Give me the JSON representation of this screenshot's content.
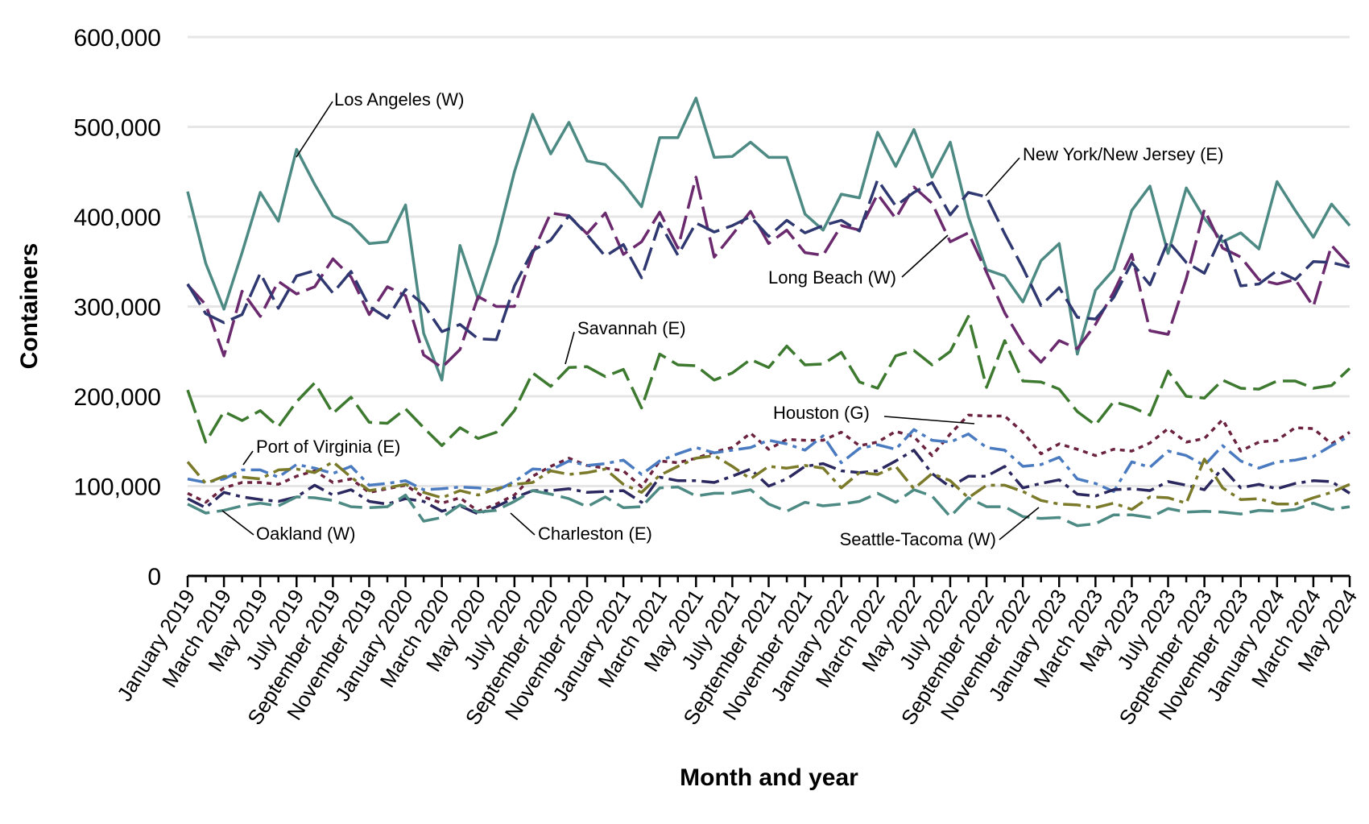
{
  "chart_data": {
    "type": "line",
    "xlabel": "Month and year",
    "ylabel": "Containers",
    "ylim": [
      0,
      600000
    ],
    "yticks": [
      0,
      100000,
      200000,
      300000,
      400000,
      500000,
      600000
    ],
    "ytick_labels": [
      "0",
      "100,000",
      "200,000",
      "300,000",
      "400,000",
      "500,000",
      "600,000"
    ],
    "grid": "horizontal",
    "x": [
      "January 2019",
      "February 2019",
      "March 2019",
      "April 2019",
      "May 2019",
      "June 2019",
      "July 2019",
      "August 2019",
      "September 2019",
      "October 2019",
      "November 2019",
      "December 2019",
      "January 2020",
      "February 2020",
      "March 2020",
      "April 2020",
      "May 2020",
      "June 2020",
      "July 2020",
      "August 2020",
      "September 2020",
      "October 2020",
      "November 2020",
      "December 2020",
      "January 2021",
      "February 2021",
      "March 2021",
      "April 2021",
      "May 2021",
      "June 2021",
      "July 2021",
      "August 2021",
      "September 2021",
      "October 2021",
      "November 2021",
      "December 2021",
      "January 2022",
      "February 2022",
      "March 2022",
      "April 2022",
      "May 2022",
      "June 2022",
      "July 2022",
      "August 2022",
      "September 2022",
      "October 2022",
      "November 2022",
      "December 2022",
      "January 2023",
      "February 2023",
      "March 2023",
      "April 2023",
      "May 2023",
      "June 2023",
      "July 2023",
      "August 2023",
      "September 2023",
      "October 2023",
      "November 2023",
      "December 2023",
      "January 2024",
      "February 2024",
      "March 2024",
      "April 2024",
      "May 2024"
    ],
    "x_tick_labels": [
      "January 2019",
      "March 2019",
      "May 2019",
      "July 2019",
      "September 2019",
      "November 2019",
      "January 2020",
      "March 2020",
      "May 2020",
      "July 2020",
      "September 2020",
      "November 2020",
      "January 2021",
      "March 2021",
      "May 2021",
      "July 2021",
      "September 2021",
      "November 2021",
      "January 2022",
      "March 2022",
      "May 2022",
      "July 2022",
      "September 2022",
      "November 2022",
      "January 2023",
      "March 2023",
      "May 2023",
      "July 2023",
      "September 2023",
      "November 2023",
      "January 2024",
      "March 2024",
      "May 2024"
    ],
    "series": [
      {
        "name": "Los Angeles (W)",
        "color": "#4d8a83",
        "dash": "solid",
        "values": [
          428000,
          348000,
          297000,
          360000,
          427000,
          395000,
          475000,
          436000,
          401000,
          391000,
          370000,
          372000,
          413000,
          270000,
          218000,
          368000,
          308000,
          370000,
          450000,
          514000,
          470000,
          505000,
          462000,
          458000,
          437000,
          411000,
          488000,
          488000,
          532000,
          466000,
          467000,
          483000,
          466000,
          466000,
          403000,
          385000,
          425000,
          421000,
          494000,
          456000,
          497000,
          444000,
          483000,
          400000,
          341000,
          334000,
          305000,
          351000,
          370000,
          247000,
          318000,
          341000,
          407000,
          434000,
          359000,
          432000,
          398000,
          372000,
          382000,
          364000,
          439000,
          407000,
          377000,
          414000,
          390000
        ]
      },
      {
        "name": "Long Beach (W)",
        "color": "#6b2a6e",
        "dash": "long",
        "values": [
          324000,
          302000,
          245000,
          317000,
          289000,
          328000,
          314000,
          322000,
          353000,
          333000,
          291000,
          322000,
          312000,
          246000,
          232000,
          252000,
          311000,
          300000,
          300000,
          359000,
          404000,
          401000,
          381000,
          404000,
          358000,
          372000,
          405000,
          365000,
          444000,
          355000,
          380000,
          406000,
          370000,
          385000,
          360000,
          357000,
          390000,
          385000,
          425000,
          398000,
          433000,
          415000,
          372000,
          382000,
          338000,
          293000,
          259000,
          238000,
          262000,
          253000,
          280000,
          316000,
          358000,
          273000,
          269000,
          331000,
          408000,
          365000,
          355000,
          330000,
          325000,
          330000,
          300000,
          368000,
          346000
        ]
      },
      {
        "name": "New York/New Jersey (E)",
        "color": "#2f3870",
        "dash": "long",
        "values": [
          325000,
          292000,
          282000,
          291000,
          337000,
          298000,
          334000,
          340000,
          315000,
          339000,
          300000,
          287000,
          319000,
          302000,
          272000,
          280000,
          264000,
          263000,
          323000,
          362000,
          374000,
          401000,
          380000,
          356000,
          369000,
          332000,
          393000,
          357000,
          393000,
          383000,
          390000,
          400000,
          378000,
          396000,
          382000,
          390000,
          396000,
          384000,
          441000,
          412000,
          427000,
          438000,
          402000,
          427000,
          422000,
          381000,
          343000,
          301000,
          321000,
          288000,
          286000,
          310000,
          349000,
          324000,
          373000,
          349000,
          337000,
          381000,
          323000,
          325000,
          340000,
          330000,
          350000,
          349000,
          344000
        ]
      },
      {
        "name": "Savannah (E)",
        "color": "#3d7a30",
        "dash": "long",
        "values": [
          207000,
          149000,
          183000,
          173000,
          184000,
          166000,
          194000,
          215000,
          181000,
          199000,
          171000,
          170000,
          186000,
          165000,
          145000,
          165000,
          153000,
          160000,
          184000,
          226000,
          211000,
          232000,
          233000,
          222000,
          230000,
          187000,
          247000,
          235000,
          234000,
          218000,
          226000,
          241000,
          232000,
          256000,
          235000,
          236000,
          249000,
          216000,
          209000,
          245000,
          251000,
          235000,
          250000,
          289000,
          210000,
          262000,
          217000,
          216000,
          208000,
          183000,
          168000,
          194000,
          188000,
          179000,
          228000,
          200000,
          198000,
          218000,
          209000,
          208000,
          217000,
          217000,
          209000,
          212000,
          231000
        ]
      },
      {
        "name": "Houston (G)",
        "color": "#6b2340",
        "dash": "dotted",
        "values": [
          92000,
          82000,
          98000,
          104000,
          104000,
          102000,
          111000,
          117000,
          104000,
          108000,
          93000,
          97000,
          101000,
          88000,
          81000,
          87000,
          72000,
          80000,
          90000,
          111000,
          122000,
          131000,
          123000,
          120000,
          117000,
          99000,
          128000,
          126000,
          131000,
          138000,
          143000,
          159000,
          141000,
          152000,
          151000,
          151000,
          160000,
          145000,
          149000,
          161000,
          155000,
          134000,
          158000,
          179000,
          178000,
          178000,
          160000,
          136000,
          147000,
          141000,
          134000,
          141000,
          139000,
          148000,
          164000,
          149000,
          153000,
          174000,
          139000,
          149000,
          151000,
          165000,
          164000,
          147000,
          160000
        ]
      },
      {
        "name": "Port of Virginia (E)",
        "color": "#4a7bc0",
        "dash": "dashdot",
        "values": [
          108000,
          104000,
          108000,
          118000,
          118000,
          110000,
          124000,
          120000,
          114000,
          122000,
          101000,
          103000,
          106000,
          96000,
          97000,
          99000,
          98000,
          95000,
          105000,
          119000,
          118000,
          128000,
          123000,
          125000,
          129000,
          113000,
          128000,
          136000,
          143000,
          137000,
          140000,
          143000,
          151000,
          147000,
          140000,
          156000,
          126000,
          142000,
          146000,
          141000,
          163000,
          151000,
          149000,
          158000,
          143000,
          140000,
          122000,
          124000,
          132000,
          108000,
          103000,
          94000,
          127000,
          121000,
          139000,
          134000,
          123000,
          145000,
          128000,
          120000,
          127000,
          129000,
          133000,
          145000,
          156000
        ]
      },
      {
        "name": "Charleston (E)",
        "color": "#2b2860",
        "dash": "dashdot",
        "values": [
          86000,
          76000,
          93000,
          88000,
          85000,
          83000,
          88000,
          101000,
          90000,
          96000,
          83000,
          80000,
          86000,
          83000,
          72000,
          78000,
          69000,
          77000,
          87000,
          95000,
          95000,
          97000,
          93000,
          94000,
          95000,
          82000,
          110000,
          106000,
          106000,
          104000,
          111000,
          119000,
          100000,
          108000,
          122000,
          125000,
          117000,
          115000,
          117000,
          128000,
          140000,
          114000,
          99000,
          111000,
          111000,
          122000,
          98000,
          103000,
          107000,
          91000,
          89000,
          96000,
          97000,
          95000,
          105000,
          101000,
          96000,
          120000,
          98000,
          102000,
          97000,
          103000,
          106000,
          105000,
          92000
        ]
      },
      {
        "name": "Oakland (W)",
        "color": "#4d8a83",
        "dash": "long",
        "values": [
          80000,
          70000,
          73000,
          78000,
          81000,
          78000,
          88000,
          87000,
          84000,
          77000,
          76000,
          77000,
          90000,
          61000,
          65000,
          79000,
          71000,
          73000,
          83000,
          95000,
          91000,
          86000,
          77000,
          88000,
          76000,
          77000,
          98000,
          99000,
          89000,
          92000,
          92000,
          96000,
          80000,
          72000,
          82000,
          78000,
          80000,
          83000,
          92000,
          82000,
          96000,
          89000,
          66000,
          87000,
          77000,
          77000,
          66000,
          64000,
          65000,
          56000,
          58000,
          68000,
          68000,
          65000,
          75000,
          71000,
          72000,
          71000,
          69000,
          73000,
          72000,
          74000,
          81000,
          74000,
          77000
        ]
      },
      {
        "name": "Seattle-Tacoma (W)",
        "color": "#7a7a2a",
        "dash": "dashdot",
        "values": [
          127000,
          103000,
          111000,
          110000,
          108000,
          118000,
          119000,
          115000,
          127000,
          110000,
          95000,
          98000,
          102000,
          93000,
          87000,
          95000,
          90000,
          97000,
          102000,
          104000,
          117000,
          113000,
          115000,
          119000,
          102000,
          93000,
          112000,
          122000,
          131000,
          134000,
          122000,
          108000,
          122000,
          120000,
          123000,
          120000,
          98000,
          115000,
          113000,
          122000,
          97000,
          114000,
          106000,
          87000,
          101000,
          101000,
          94000,
          84000,
          80000,
          79000,
          76000,
          81000,
          74000,
          88000,
          87000,
          81000,
          130000,
          98000,
          85000,
          86000,
          80000,
          80000,
          87000,
          93000,
          102000
        ]
      }
    ],
    "annotations": [
      "Los Angeles (W)",
      "New York/New Jersey (E)",
      "Long Beach (W)",
      "Savannah (E)",
      "Houston (G)",
      "Port of Virginia (E)",
      "Oakland (W)",
      "Charleston (E)",
      "Seattle-Tacoma (W)"
    ]
  }
}
